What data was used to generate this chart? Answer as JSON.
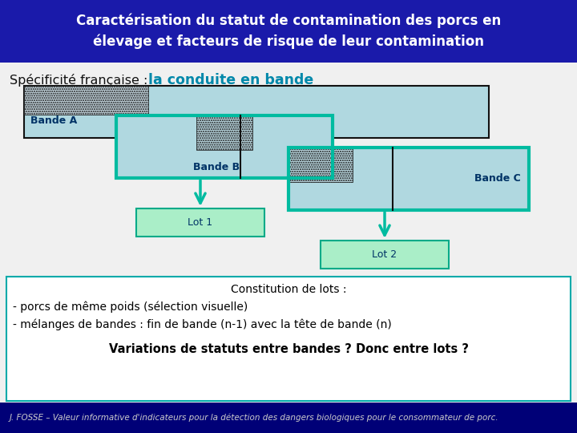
{
  "title_line1": "Caractérisation du statut de contamination des porcs en",
  "title_line2": "élevage et facteurs de risque de leur contamination",
  "title_bg": "#1a1aaa",
  "title_fg": "#ffffff",
  "subtitle_black": "Spécificité française :  ",
  "subtitle_teal": "la conduite en bande",
  "subtitle_fg_black": "#111111",
  "subtitle_fg_teal": "#0088aa",
  "bande_fill_light": "#b0d8e0",
  "bande_fill_dot": "#c0dce4",
  "bande_border_teal": "#00bba0",
  "bande_border_black": "#111111",
  "lot_fill": "#aaeec8",
  "lot_border": "#00aa88",
  "lot_text_color": "#003366",
  "label_color": "#003366",
  "footer_bg": "#000077",
  "footer_fg": "#cccccc",
  "footer_text": "J. FOSSE – Valeur informative d'indicateurs pour la détection des dangers biologiques pour le consommateur de porc.",
  "box_border": "#00aaaa",
  "box_text1": "Constitution de lots :",
  "box_text2": "- porcs de même poids (sélection visuelle)",
  "box_text3": "- mélanges de bandes : fin de bande (n-1) avec la tête de bande (n)",
  "box_text4": "Variations de statuts entre bandes ? Donc entre lots ?",
  "arrow_color": "#00bba0"
}
